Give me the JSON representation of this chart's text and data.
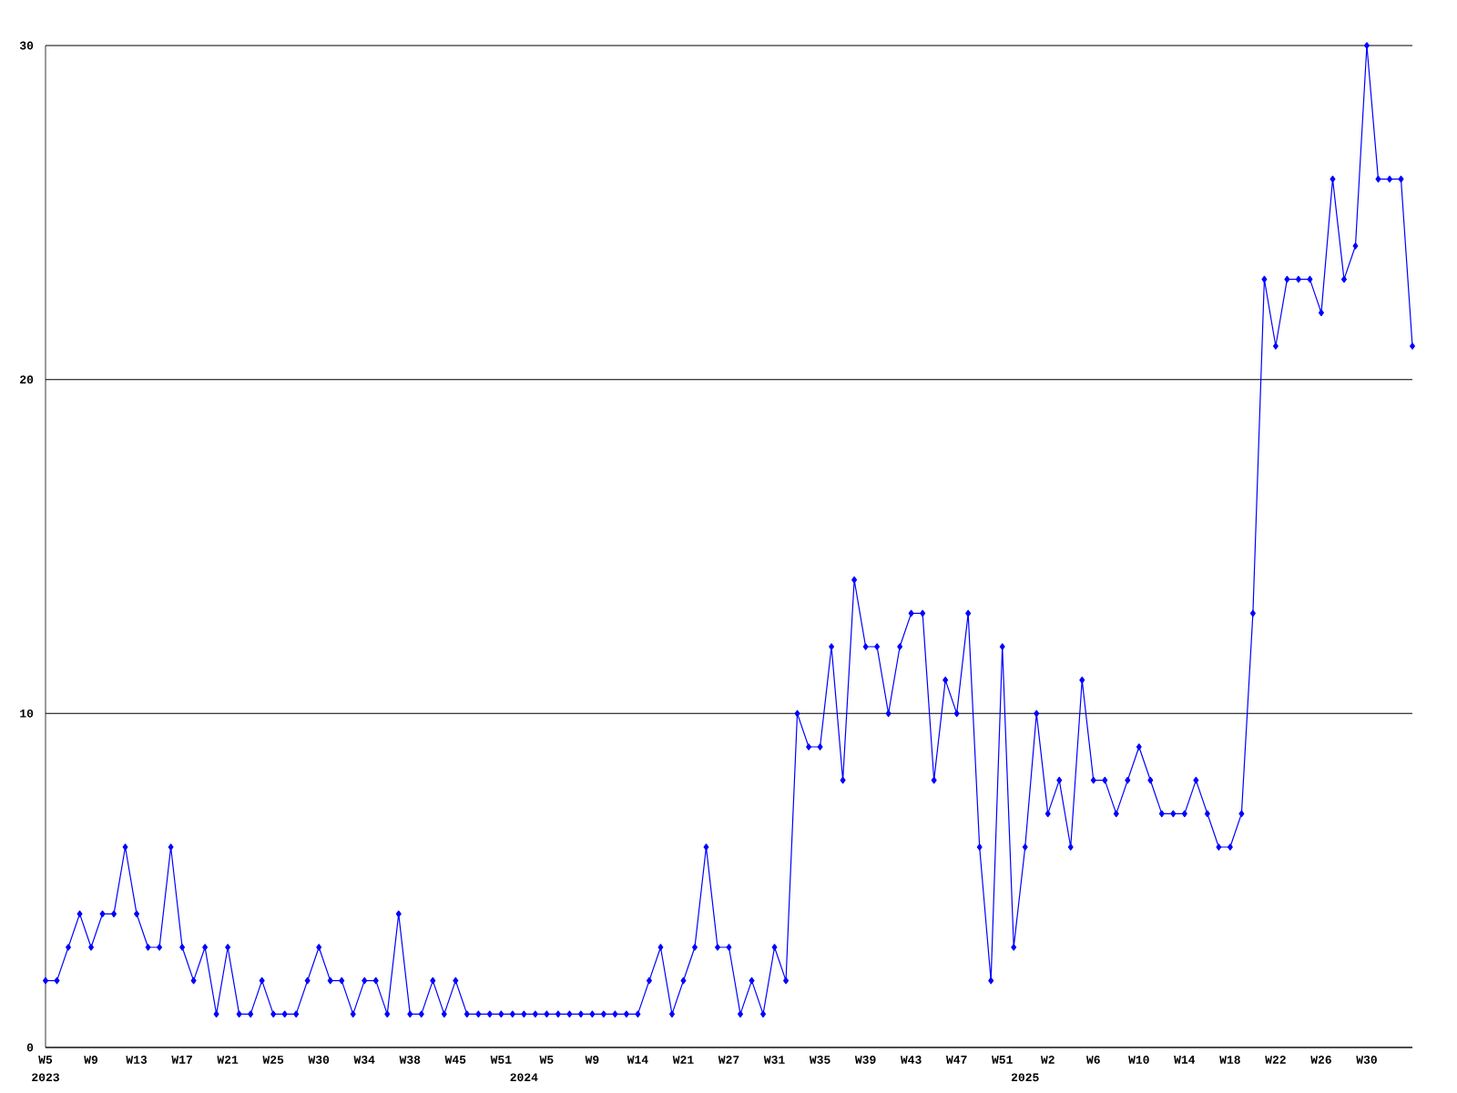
{
  "chart_data": {
    "type": "line",
    "categories": [
      "W5",
      null,
      null,
      null,
      "W9",
      null,
      null,
      null,
      "W13",
      null,
      null,
      null,
      "W17",
      null,
      null,
      null,
      "W21",
      null,
      null,
      null,
      "W25",
      null,
      null,
      null,
      "W30",
      null,
      null,
      null,
      "W34",
      null,
      null,
      null,
      "W38",
      null,
      null,
      null,
      "W45",
      null,
      null,
      null,
      "W51",
      null,
      null,
      null,
      "W5",
      null,
      null,
      null,
      "W9",
      null,
      null,
      null,
      "W14",
      null,
      null,
      null,
      "W21",
      null,
      null,
      null,
      "W27",
      null,
      null,
      null,
      "W31",
      null,
      null,
      null,
      "W35",
      null,
      null,
      null,
      "W39",
      null,
      null,
      null,
      "W43",
      null,
      null,
      null,
      "W47",
      null,
      null,
      null,
      "W51",
      null,
      null,
      null,
      "W2",
      null,
      null,
      null,
      "W6",
      null,
      null,
      null,
      "W10",
      null,
      null,
      null,
      "W14",
      null,
      null,
      null,
      "W18",
      null,
      null,
      null,
      "W22",
      null,
      null,
      null,
      "W26",
      null,
      null,
      null,
      "W30",
      null,
      null,
      null,
      null
    ],
    "values": [
      2,
      2,
      3,
      4,
      3,
      4,
      4,
      6,
      4,
      3,
      3,
      6,
      3,
      2,
      3,
      1,
      3,
      1,
      1,
      2,
      1,
      1,
      1,
      2,
      3,
      2,
      2,
      1,
      2,
      2,
      1,
      4,
      1,
      1,
      2,
      1,
      2,
      1,
      1,
      1,
      1,
      1,
      1,
      1,
      1,
      1,
      1,
      1,
      1,
      1,
      1,
      1,
      1,
      2,
      3,
      1,
      2,
      3,
      6,
      3,
      3,
      1,
      2,
      1,
      3,
      2,
      10,
      9,
      9,
      12,
      8,
      14,
      12,
      12,
      10,
      12,
      13,
      13,
      8,
      11,
      10,
      13,
      6,
      2,
      12,
      3,
      6,
      10,
      7,
      8,
      6,
      11,
      8,
      8,
      7,
      8,
      9,
      8,
      7,
      7,
      7,
      8,
      7,
      6,
      6,
      7,
      13,
      23,
      21,
      23,
      23,
      23,
      22,
      26,
      23,
      24,
      30,
      26,
      26,
      26,
      21
    ],
    "color": "#0000ff",
    "marker": "diamond",
    "line_style": "solid",
    "ylim": [
      0,
      30
    ],
    "yticks": [
      0,
      10,
      20,
      30
    ],
    "grid": "y",
    "annotations": [
      "2023",
      "2024",
      "2025"
    ]
  }
}
